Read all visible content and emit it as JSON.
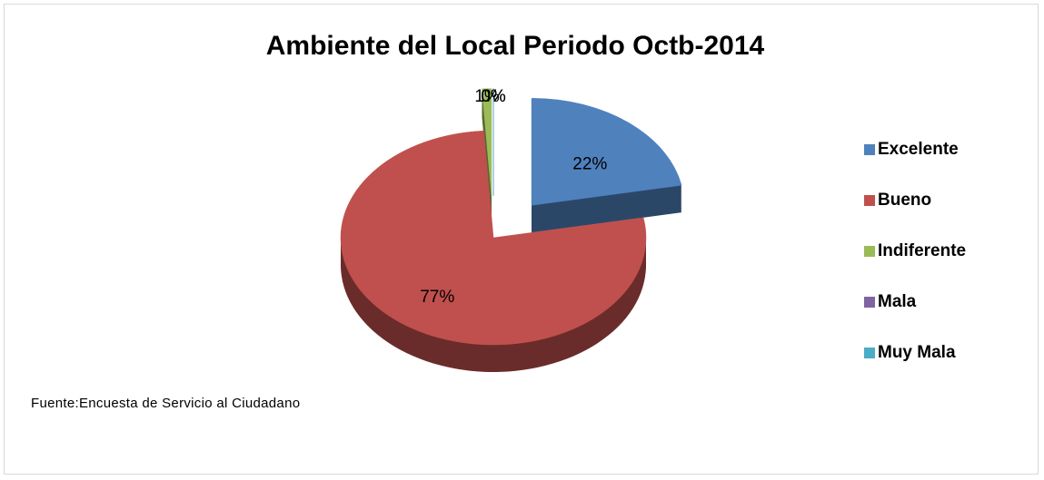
{
  "chart_data": {
    "type": "pie",
    "title": "Ambiente del Local Periodo Octb-2014",
    "categories": [
      "Excelente",
      "Bueno",
      "Indiferente",
      "Mala",
      "Muy Mala"
    ],
    "values": [
      22,
      77,
      1,
      0,
      0
    ],
    "value_labels": [
      "22%",
      "77%",
      "1%",
      "0%",
      "0%"
    ],
    "colors": [
      "#4f81bd",
      "#c0504d",
      "#9bbb59",
      "#8064a2",
      "#4bacc6"
    ],
    "legend": "right",
    "footnote": "Fuente:Encuesta de Servicio al Ciudadano"
  }
}
